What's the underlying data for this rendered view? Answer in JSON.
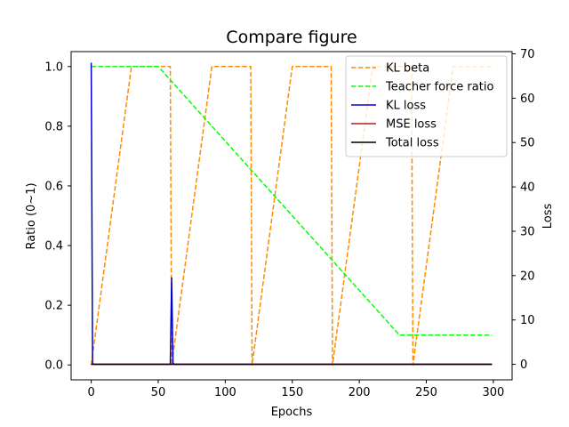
{
  "chart_data": {
    "type": "line",
    "title": "Compare figure",
    "xlabel": "Epochs",
    "ylabel_left": "Ratio (0~1)",
    "ylabel_right": "Loss",
    "xlim": [
      -15,
      314
    ],
    "ylim_left": [
      -0.05,
      1.05
    ],
    "ylim_right": [
      -3.5,
      70.5
    ],
    "x_ticks": [
      0,
      50,
      100,
      150,
      200,
      250,
      300
    ],
    "y_left_ticks": [
      0.0,
      0.2,
      0.4,
      0.6,
      0.8,
      1.0
    ],
    "y_right_ticks": [
      0,
      10,
      20,
      30,
      40,
      50,
      60,
      70
    ],
    "grid": false,
    "legend_position": "top-right",
    "series": [
      {
        "name": "KL beta",
        "axis": "left",
        "color": "#ff8c00",
        "dash": true,
        "x": [
          0,
          30,
          50,
          59,
          60,
          90,
          110,
          119,
          120,
          150,
          170,
          179,
          180,
          210,
          230,
          239,
          240,
          270,
          299
        ],
        "y": [
          0.0,
          1.0,
          1.0,
          1.0,
          0.0,
          1.0,
          1.0,
          1.0,
          0.0,
          1.0,
          1.0,
          1.0,
          0.0,
          1.0,
          1.0,
          1.0,
          0.0,
          1.0,
          1.0
        ]
      },
      {
        "name": "Teacher force ratio",
        "axis": "left",
        "color": "#00ff00",
        "dash": true,
        "x": [
          0,
          50,
          230,
          299
        ],
        "y": [
          1.0,
          1.0,
          0.1,
          0.1
        ]
      },
      {
        "name": "KL loss",
        "axis": "right",
        "color": "#0000cd",
        "dash": false,
        "x": [
          0,
          1,
          2,
          59,
          60,
          61,
          62,
          299
        ],
        "y": [
          68.0,
          0.2,
          0.0,
          0.0,
          19.5,
          0.3,
          0.0,
          0.0
        ]
      },
      {
        "name": "MSE loss",
        "axis": "right",
        "color": "#b22222",
        "dash": false,
        "x": [
          0,
          299
        ],
        "y": [
          0.0,
          0.0
        ]
      },
      {
        "name": "Total loss",
        "axis": "right",
        "color": "#000000",
        "dash": false,
        "x": [
          0,
          299
        ],
        "y": [
          0.0,
          0.0
        ]
      }
    ]
  }
}
